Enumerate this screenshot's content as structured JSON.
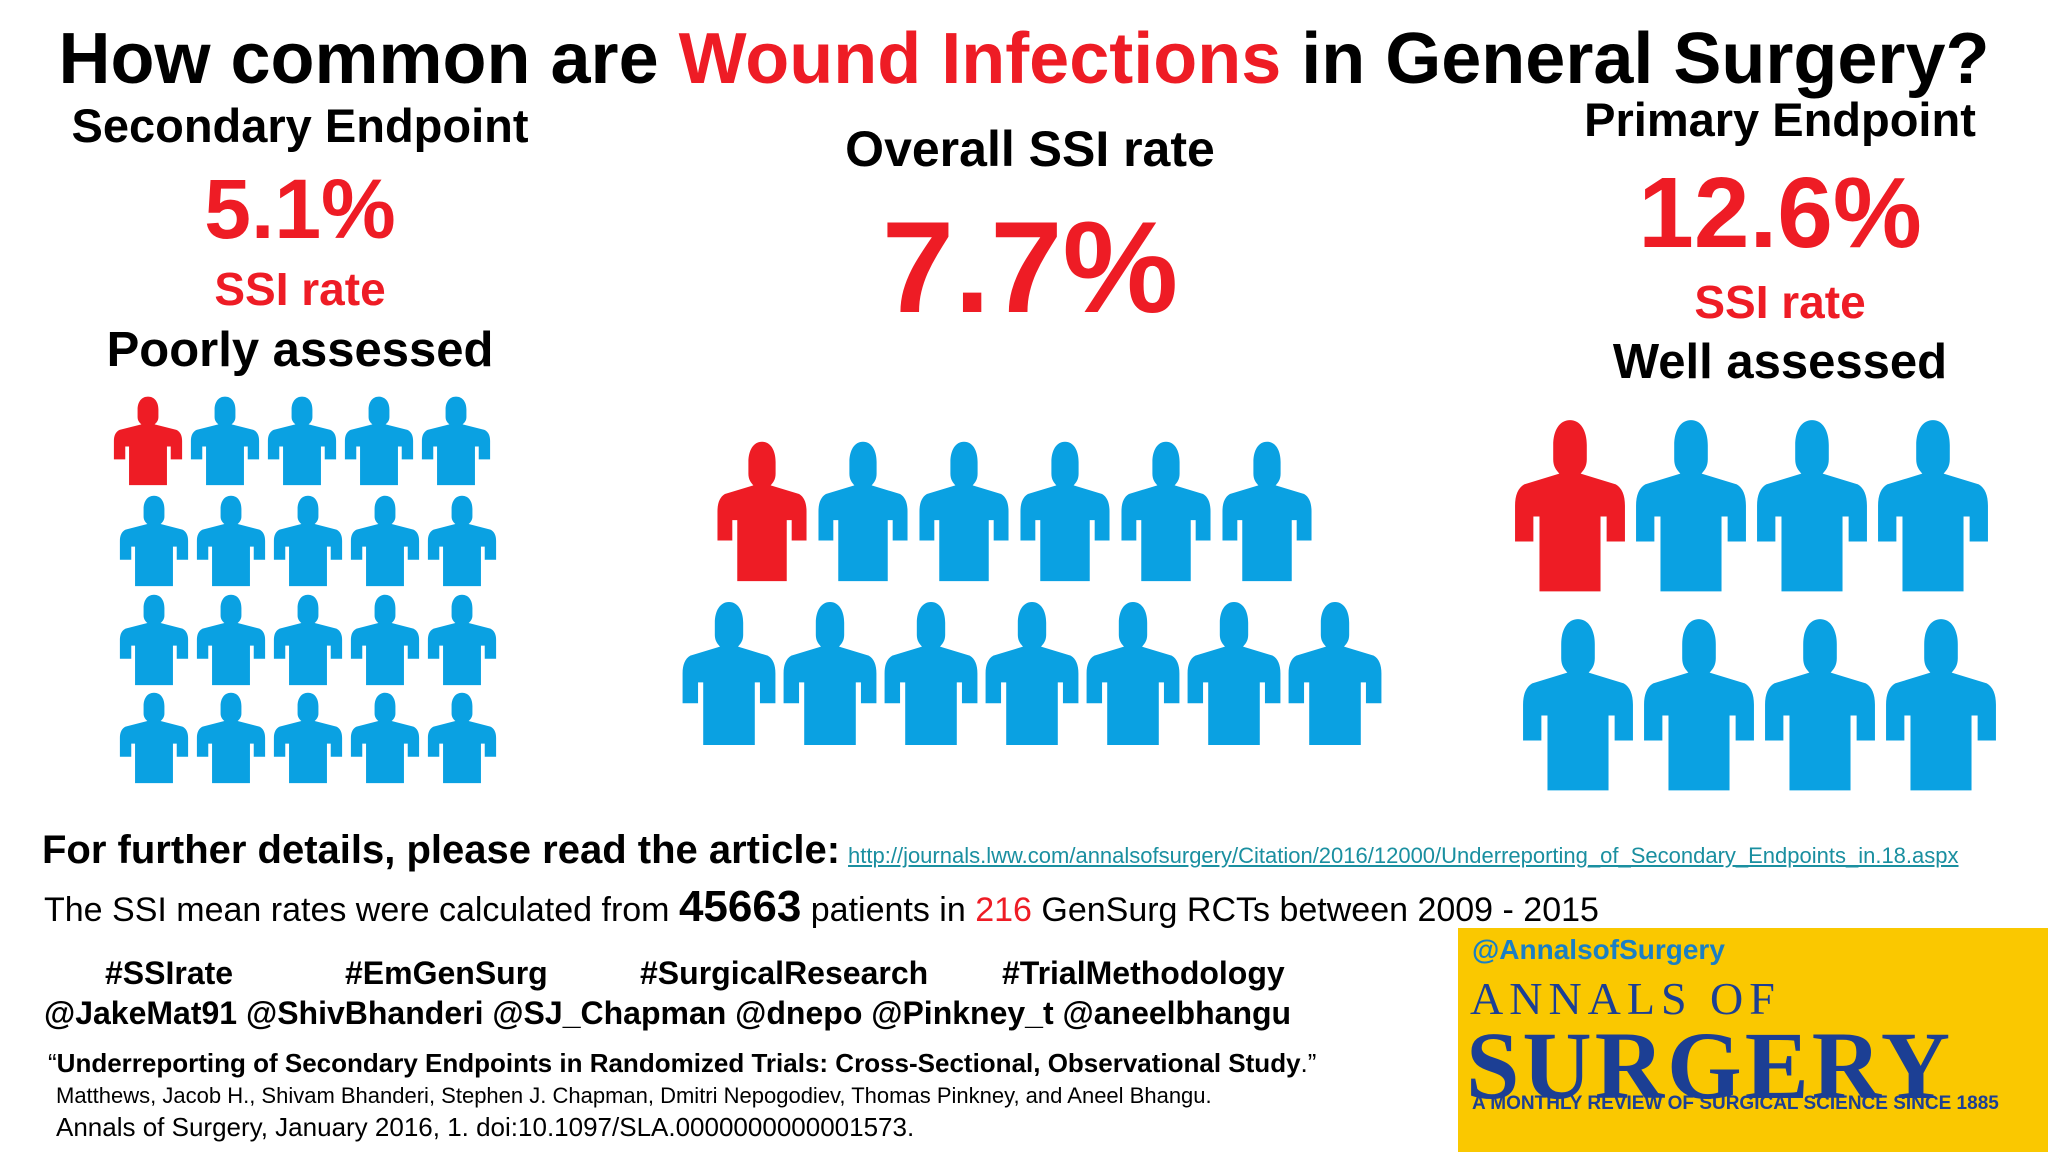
{
  "title": {
    "part1": "How common are ",
    "part2": "Wound Infections",
    "part3": " in General Surgery?"
  },
  "secondary": {
    "heading": "Secondary Endpoint",
    "rate": "5.1%",
    "rate_label": "SSI rate",
    "assessment": "Poorly assessed",
    "figures_total": 20,
    "figures_highlighted": 1
  },
  "overall": {
    "heading": "Overall SSI rate",
    "rate": "7.7%",
    "figures_total": 13,
    "figures_highlighted": 1
  },
  "primary": {
    "heading": "Primary Endpoint",
    "rate": "12.6%",
    "rate_label": "SSI rate",
    "assessment": "Well assessed",
    "figures_total": 8,
    "figures_highlighted": 1
  },
  "colors": {
    "highlight": "#ee1c25",
    "figure": "#0aa1e2",
    "journal_bg": "#fac800",
    "journal_text": "#1c3f94"
  },
  "details": {
    "lead": "For further details, please read the article:",
    "url": "http://journals.lww.com/annalsofsurgery/Citation/2016/12000/Underreporting_of_Secondary_Endpoints_in.18.aspx"
  },
  "calculation": {
    "prefix": "The SSI mean rates were calculated from ",
    "patients": "45663",
    "middle": " patients in ",
    "trials": "216",
    "suffix": " GenSurg RCTs between 2009 - 2015"
  },
  "hashtags": [
    "#SSIrate",
    "#EmGenSurg",
    "#SurgicalResearch",
    "#TrialMethodology"
  ],
  "handles": "@JakeMat91 @ShivBhanderi @SJ_Chapman @dnepo @Pinkney_t @aneelbhangu",
  "citation": {
    "open_quote": "“",
    "title": "Underreporting of Secondary Endpoints in Randomized Trials: Cross-Sectional, Observational Study",
    "close_quote": ".”",
    "authors": "Matthews, Jacob H., Shivam Bhanderi, Stephen J. Chapman, Dmitri Nepogodiev, Thomas Pinkney, and Aneel Bhangu.",
    "journal": "Annals of Surgery, January 2016, 1. doi:10.1097/SLA.0000000000001573."
  },
  "journal": {
    "handle": "@AnnalsofSurgery",
    "name_top": "ANNALS OF",
    "name_main": "SURGERY",
    "tagline": "A MONTHLY REVIEW OF SURGICAL SCIENCE SINCE 1885"
  }
}
